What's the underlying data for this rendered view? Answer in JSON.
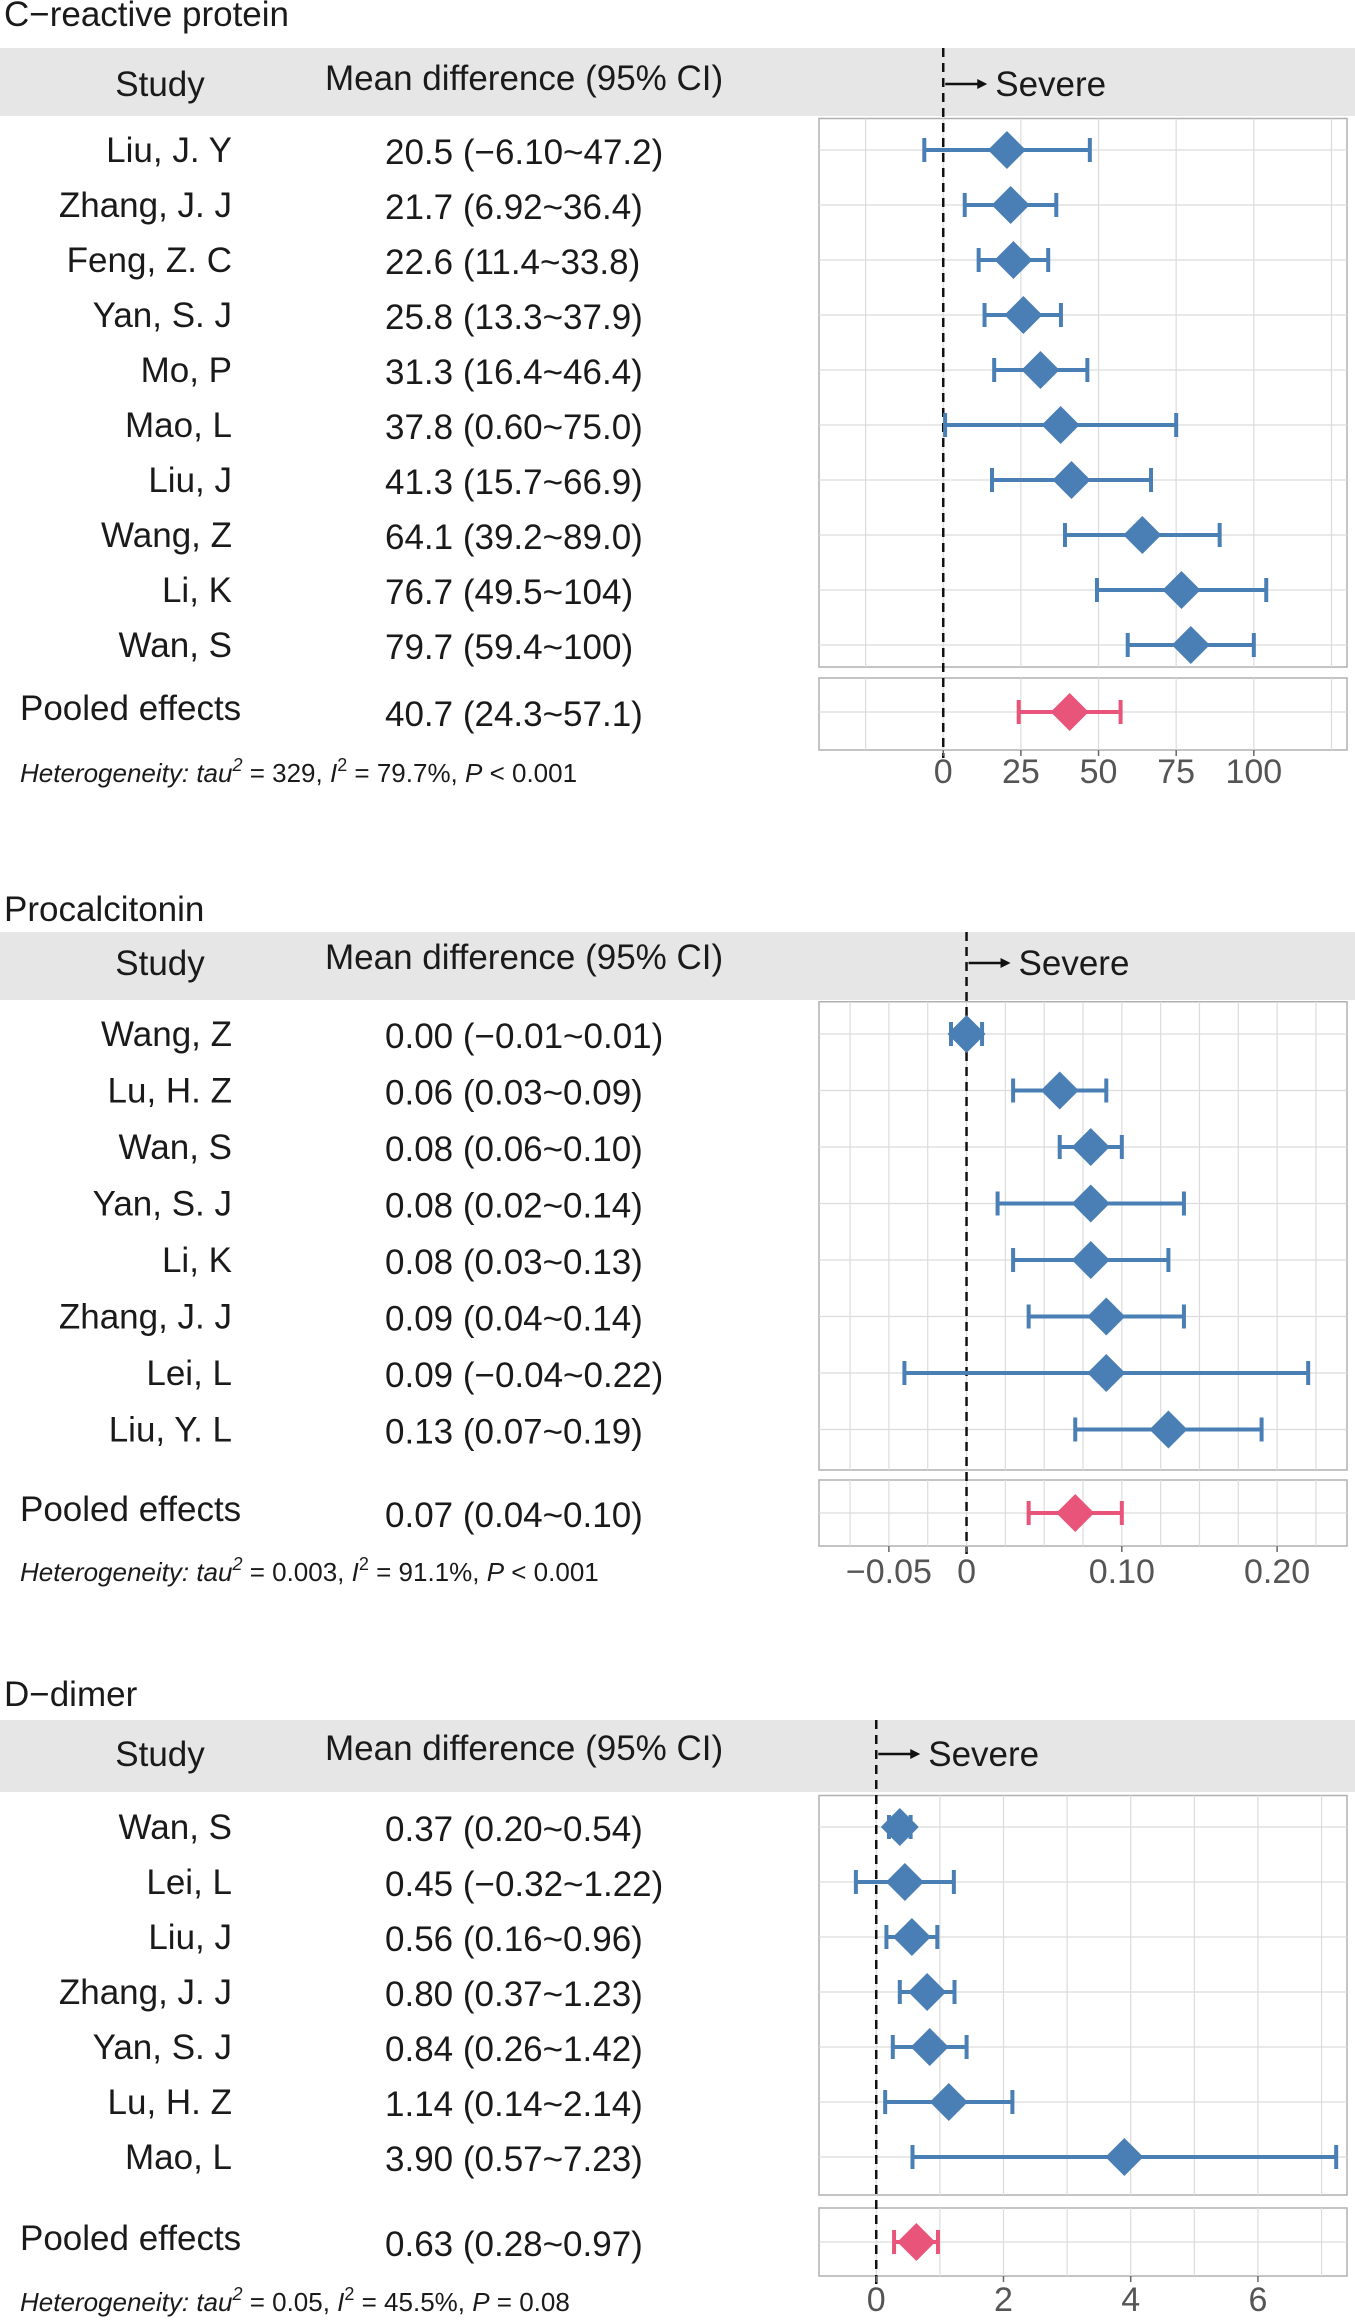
{
  "chart_data": [
    {
      "type": "forest",
      "title": "C−reactive protein",
      "header": {
        "study": "Study",
        "effect": "Mean difference (95% CI)",
        "direction": "Severe"
      },
      "xlim": [
        -40,
        130
      ],
      "xticks": [
        0,
        25,
        50,
        75,
        100
      ],
      "xtick_labels": [
        "0",
        "25",
        "50",
        "75",
        "100"
      ],
      "gridlines": [
        -25,
        0,
        25,
        50,
        75,
        100,
        125
      ],
      "studies": [
        {
          "name": "Liu, J. Y",
          "label": "20.5 (−6.10~47.2)",
          "mean": 20.5,
          "lo": -6.1,
          "hi": 47.2
        },
        {
          "name": "Zhang, J. J",
          "label": "21.7 (6.92~36.4)",
          "mean": 21.7,
          "lo": 6.92,
          "hi": 36.4
        },
        {
          "name": "Feng, Z. C",
          "label": "22.6 (11.4~33.8)",
          "mean": 22.6,
          "lo": 11.4,
          "hi": 33.8
        },
        {
          "name": "Yan, S. J",
          "label": "25.8 (13.3~37.9)",
          "mean": 25.8,
          "lo": 13.3,
          "hi": 37.9
        },
        {
          "name": "Mo, P",
          "label": "31.3 (16.4~46.4)",
          "mean": 31.3,
          "lo": 16.4,
          "hi": 46.4
        },
        {
          "name": "Mao, L",
          "label": "37.8 (0.60~75.0)",
          "mean": 37.8,
          "lo": 0.6,
          "hi": 75.0
        },
        {
          "name": "Liu, J",
          "label": "41.3 (15.7~66.9)",
          "mean": 41.3,
          "lo": 15.7,
          "hi": 66.9
        },
        {
          "name": "Wang, Z",
          "label": "64.1 (39.2~89.0)",
          "mean": 64.1,
          "lo": 39.2,
          "hi": 89.0
        },
        {
          "name": "Li, K",
          "label": "76.7 (49.5~104)",
          "mean": 76.7,
          "lo": 49.5,
          "hi": 104
        },
        {
          "name": "Wan, S",
          "label": "79.7 (59.4~100)",
          "mean": 79.7,
          "lo": 59.4,
          "hi": 100
        }
      ],
      "pooled": {
        "name": "Pooled effects",
        "label": "40.7 (24.3~57.1)",
        "mean": 40.7,
        "lo": 24.3,
        "hi": 57.1
      },
      "heterogeneity": {
        "prefix": "Heterogeneity: tau",
        "sup1": "2",
        "mid1": " = 329, ",
        "ivar": "I",
        "sup2": "2",
        "mid2": " = 79.7%, ",
        "pvar": "P",
        "suffix": " < 0.001"
      }
    },
    {
      "type": "forest",
      "title": "Procalcitonin",
      "header": {
        "study": "Study",
        "effect": "Mean difference (95% CI)",
        "direction": "Severe"
      },
      "xlim": [
        -0.095,
        0.245
      ],
      "xticks": [
        -0.05,
        0,
        0.1,
        0.2
      ],
      "xtick_labels": [
        "−0.05",
        "0",
        "0.10",
        "0.20"
      ],
      "gridlines": [
        -0.075,
        -0.05,
        -0.025,
        0,
        0.025,
        0.05,
        0.075,
        0.1,
        0.125,
        0.15,
        0.175,
        0.2,
        0.225
      ],
      "studies": [
        {
          "name": "Wang, Z",
          "label": "0.00 (−0.01~0.01)",
          "mean": 0.0,
          "lo": -0.01,
          "hi": 0.01
        },
        {
          "name": "Lu, H. Z",
          "label": "0.06 (0.03~0.09)",
          "mean": 0.06,
          "lo": 0.03,
          "hi": 0.09
        },
        {
          "name": "Wan, S",
          "label": "0.08 (0.06~0.10)",
          "mean": 0.08,
          "lo": 0.06,
          "hi": 0.1
        },
        {
          "name": "Yan, S. J",
          "label": "0.08 (0.02~0.14)",
          "mean": 0.08,
          "lo": 0.02,
          "hi": 0.14
        },
        {
          "name": "Li, K",
          "label": "0.08 (0.03~0.13)",
          "mean": 0.08,
          "lo": 0.03,
          "hi": 0.13
        },
        {
          "name": "Zhang, J. J",
          "label": "0.09 (0.04~0.14)",
          "mean": 0.09,
          "lo": 0.04,
          "hi": 0.14
        },
        {
          "name": "Lei, L",
          "label": "0.09 (−0.04~0.22)",
          "mean": 0.09,
          "lo": -0.04,
          "hi": 0.22
        },
        {
          "name": "Liu, Y. L",
          "label": "0.13 (0.07~0.19)",
          "mean": 0.13,
          "lo": 0.07,
          "hi": 0.19
        }
      ],
      "pooled": {
        "name": "Pooled effects",
        "label": "0.07 (0.04~0.10)",
        "mean": 0.07,
        "lo": 0.04,
        "hi": 0.1
      },
      "heterogeneity": {
        "prefix": "Heterogeneity: tau",
        "sup1": "2",
        "mid1": " = 0.003, ",
        "ivar": "I",
        "sup2": "2",
        "mid2": " = 91.1%, ",
        "pvar": "P",
        "suffix": " < 0.001"
      }
    },
    {
      "type": "forest",
      "title": "D−dimer",
      "header": {
        "study": "Study",
        "effect": "Mean difference (95% CI)",
        "direction": "Severe"
      },
      "xlim": [
        -0.9,
        7.4
      ],
      "xticks": [
        0,
        2,
        4,
        6
      ],
      "xtick_labels": [
        "0",
        "2",
        "4",
        "6"
      ],
      "gridlines": [
        -1,
        0,
        1,
        2,
        3,
        4,
        5,
        6,
        7
      ],
      "studies": [
        {
          "name": "Wan, S",
          "label": "0.37 (0.20~0.54)",
          "mean": 0.37,
          "lo": 0.2,
          "hi": 0.54
        },
        {
          "name": "Lei, L",
          "label": "0.45 (−0.32~1.22)",
          "mean": 0.45,
          "lo": -0.32,
          "hi": 1.22
        },
        {
          "name": "Liu, J",
          "label": "0.56 (0.16~0.96)",
          "mean": 0.56,
          "lo": 0.16,
          "hi": 0.96
        },
        {
          "name": "Zhang, J. J",
          "label": "0.80 (0.37~1.23)",
          "mean": 0.8,
          "lo": 0.37,
          "hi": 1.23
        },
        {
          "name": "Yan, S. J",
          "label": "0.84 (0.26~1.42)",
          "mean": 0.84,
          "lo": 0.26,
          "hi": 1.42
        },
        {
          "name": "Lu, H. Z",
          "label": "1.14 (0.14~2.14)",
          "mean": 1.14,
          "lo": 0.14,
          "hi": 2.14
        },
        {
          "name": "Mao, L",
          "label": "3.90 (0.57~7.23)",
          "mean": 3.9,
          "lo": 0.57,
          "hi": 7.23
        }
      ],
      "pooled": {
        "name": "Pooled effects",
        "label": "0.63 (0.28~0.97)",
        "mean": 0.63,
        "lo": 0.28,
        "hi": 0.97
      },
      "heterogeneity": {
        "prefix": "Heterogeneity: tau",
        "sup1": "2",
        "mid1": " = 0.05, ",
        "ivar": "I",
        "sup2": "2",
        "mid2": " = 45.5%, ",
        "pvar": "P",
        "suffix": " = 0.08"
      }
    }
  ],
  "colors": {
    "study_marker": "#4a7fb5",
    "pooled_marker": "#e8547a",
    "header_band": "#e6e6e6",
    "grid": "#dcdcdc",
    "panel_border": "#b0b0b0",
    "text": "#1a1a1a",
    "axis_text": "#555555"
  }
}
